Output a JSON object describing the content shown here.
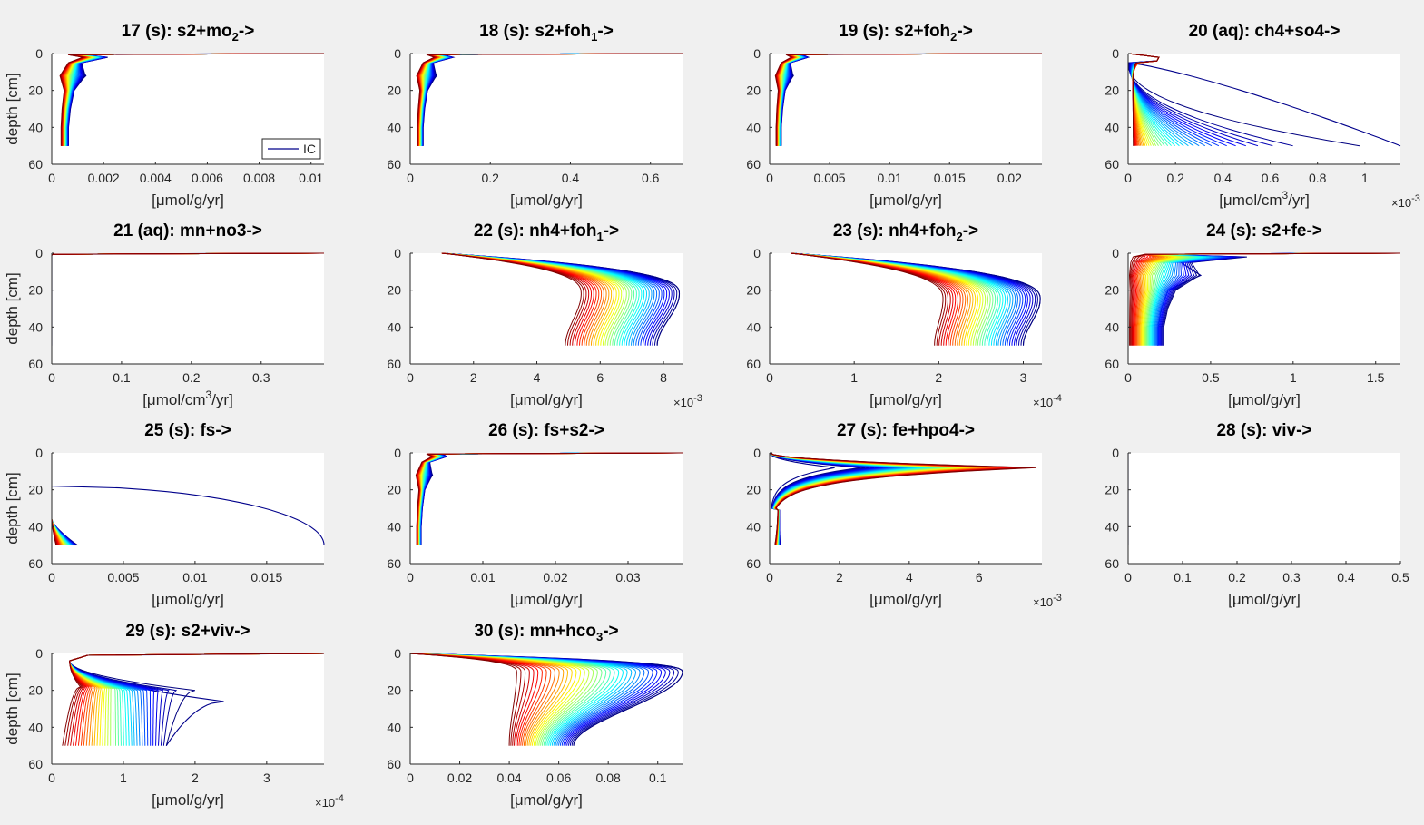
{
  "figure": {
    "background": "#f0f0f0",
    "colormap": "jet (blue = early time steps, red = late time steps)",
    "ic_color": "#00008b"
  },
  "chart_data": [
    {
      "type": "line",
      "id": 17,
      "title_pre": "17 (s): s2+mo",
      "title_sub": "2",
      "title_post": "->",
      "xlabel": "[μmol/g/yr]",
      "ylabel": "depth [cm]",
      "xlim": [
        0,
        0.0105
      ],
      "xticks": [
        "0",
        "0.002",
        "0.004",
        "0.006",
        "0.008",
        "0.01"
      ],
      "xtick_values": [
        0,
        0.002,
        0.004,
        0.006,
        0.008,
        0.01
      ],
      "ylim": [
        0,
        60
      ],
      "yticks": [
        "0",
        "20",
        "40",
        "60"
      ],
      "y_reversed": true,
      "multiplier": "",
      "legend": {
        "entries": [
          "IC"
        ],
        "placement": "bottom-right"
      },
      "profile": "surface_spike",
      "peak_depth": 1,
      "final_value": 0.0004,
      "ic_value": 0.0006,
      "peak_value": 0.0105
    },
    {
      "type": "line",
      "id": 18,
      "title_pre": "18 (s): s2+foh",
      "title_sub": "1",
      "title_post": "->",
      "xlabel": "[μmol/g/yr]",
      "ylabel": "",
      "xlim": [
        0,
        0.68
      ],
      "xticks": [
        "0",
        "0.2",
        "0.4",
        "0.6"
      ],
      "xtick_values": [
        0,
        0.2,
        0.4,
        0.6
      ],
      "ylim": [
        0,
        60
      ],
      "yticks": [
        "0",
        "20",
        "40",
        "60"
      ],
      "y_reversed": true,
      "multiplier": "",
      "profile": "surface_spike",
      "peak_depth": 1,
      "final_value": 0.02,
      "ic_value": 0.03,
      "peak_value": 0.68
    },
    {
      "type": "line",
      "id": 19,
      "title_pre": "19 (s): s2+foh",
      "title_sub": "2",
      "title_post": "->",
      "xlabel": "[μmol/g/yr]",
      "ylabel": "",
      "xlim": [
        0,
        0.0227
      ],
      "xticks": [
        "0",
        "0.005",
        "0.01",
        "0.015",
        "0.02"
      ],
      "xtick_values": [
        0,
        0.005,
        0.01,
        0.015,
        0.02
      ],
      "ylim": [
        0,
        60
      ],
      "yticks": [
        "0",
        "20",
        "40",
        "60"
      ],
      "y_reversed": true,
      "multiplier": "",
      "profile": "surface_spike",
      "peak_depth": 1,
      "final_value": 0.0006,
      "ic_value": 0.0009,
      "peak_value": 0.0227
    },
    {
      "type": "line",
      "id": 20,
      "title_pre": "20 (aq): ch4+so4->",
      "title_sub": "",
      "title_post": "",
      "xlabel": "[μmol/cm³/yr]",
      "xlabel_pre": "[μmol/cm",
      "xlabel_sup": "3",
      "xlabel_post": "/yr]",
      "ylabel": "",
      "xlim": [
        0,
        1.15
      ],
      "xticks": [
        "0",
        "0.2",
        "0.4",
        "0.6",
        "0.8",
        "1"
      ],
      "xtick_values": [
        0,
        0.2,
        0.4,
        0.6,
        0.8,
        1
      ],
      "ylim": [
        0,
        60
      ],
      "yticks": [
        "0",
        "20",
        "40",
        "60"
      ],
      "y_reversed": true,
      "multiplier": "×10",
      "multiplier_exp": "-3",
      "profile": "deep_fan",
      "surface_value": 0.13,
      "surface_depth": 5,
      "final_value": 0.02,
      "max_bottom_value": 1.15
    },
    {
      "type": "line",
      "id": 21,
      "title_pre": "21 (aq): mn+no3->",
      "title_sub": "",
      "title_post": "",
      "xlabel": "[μmol/cm³/yr]",
      "xlabel_pre": "[μmol/cm",
      "xlabel_sup": "3",
      "xlabel_post": "/yr]",
      "ylabel": "depth [cm]",
      "xlim": [
        0,
        0.39
      ],
      "xticks": [
        "0",
        "0.1",
        "0.2",
        "0.3"
      ],
      "xtick_values": [
        0,
        0.1,
        0.2,
        0.3
      ],
      "ylim": [
        0,
        60
      ],
      "yticks": [
        "0",
        "20",
        "40",
        "60"
      ],
      "y_reversed": true,
      "multiplier": "",
      "profile": "flat_surface",
      "peak_value": 0.39
    },
    {
      "type": "line",
      "id": 22,
      "title_pre": "22 (s): nh4+foh",
      "title_sub": "1",
      "title_post": "->",
      "xlabel": "[μmol/g/yr]",
      "ylabel": "",
      "xlim": [
        0,
        8.6
      ],
      "xticks": [
        "0",
        "2",
        "4",
        "6",
        "8"
      ],
      "xtick_values": [
        0,
        2,
        4,
        6,
        8
      ],
      "ylim": [
        0,
        60
      ],
      "yticks": [
        "0",
        "20",
        "40",
        "60"
      ],
      "y_reversed": true,
      "multiplier": "×10",
      "multiplier_exp": "-3",
      "profile": "bulge",
      "surface_value": 1.0,
      "bottom_late": 4.9,
      "bottom_early": 7.8,
      "bulge_late": 5.4,
      "bulge_early": 8.5,
      "bulge_depth": 22
    },
    {
      "type": "line",
      "id": 23,
      "title_pre": "23 (s): nh4+foh",
      "title_sub": "2",
      "title_post": "->",
      "xlabel": "[μmol/g/yr]",
      "ylabel": "",
      "xlim": [
        0,
        3.22
      ],
      "xticks": [
        "0",
        "1",
        "2",
        "3"
      ],
      "xtick_values": [
        0,
        1,
        2,
        3
      ],
      "ylim": [
        0,
        60
      ],
      "yticks": [
        "0",
        "20",
        "40",
        "60"
      ],
      "y_reversed": true,
      "multiplier": "×10",
      "multiplier_exp": "-4",
      "profile": "bulge",
      "surface_value": 0.25,
      "bottom_late": 1.95,
      "bottom_early": 3.0,
      "bulge_late": 2.05,
      "bulge_early": 3.2,
      "bulge_depth": 25
    },
    {
      "type": "line",
      "id": 24,
      "title_pre": "24 (s): s2+fe->",
      "title_sub": "",
      "title_post": "",
      "xlabel": "[μmol/g/yr]",
      "ylabel": "",
      "xlim": [
        0,
        1.65
      ],
      "xticks": [
        "0",
        "0.5",
        "1",
        "1.5"
      ],
      "xtick_values": [
        0,
        0.5,
        1,
        1.5
      ],
      "ylim": [
        0,
        60
      ],
      "yticks": [
        "0",
        "20",
        "40",
        "60"
      ],
      "y_reversed": true,
      "multiplier": "",
      "profile": "surface_spike",
      "peak_depth": 0.5,
      "final_value": 0.01,
      "ic_value": 0.2,
      "peak_value": 1.65
    },
    {
      "type": "line",
      "id": 25,
      "title_pre": "25 (s): fs->",
      "title_sub": "",
      "title_post": "",
      "xlabel": "[μmol/g/yr]",
      "ylabel": "depth [cm]",
      "xlim": [
        0,
        0.019
      ],
      "xticks": [
        "0",
        "0.005",
        "0.01",
        "0.015"
      ],
      "xtick_values": [
        0,
        0.005,
        0.01,
        0.015
      ],
      "ylim": [
        0,
        60
      ],
      "yticks": [
        "0",
        "20",
        "40",
        "60"
      ],
      "y_reversed": true,
      "multiplier": "",
      "profile": "fs",
      "ic_start_depth": 18,
      "ic_max": 0.019
    },
    {
      "type": "line",
      "id": 26,
      "title_pre": "26 (s): fs+s2->",
      "title_sub": "",
      "title_post": "",
      "xlabel": "[μmol/g/yr]",
      "ylabel": "",
      "xlim": [
        0,
        0.0375
      ],
      "xticks": [
        "0",
        "0.01",
        "0.02",
        "0.03"
      ],
      "xtick_values": [
        0,
        0.01,
        0.02,
        0.03
      ],
      "ylim": [
        0,
        60
      ],
      "yticks": [
        "0",
        "20",
        "40",
        "60"
      ],
      "y_reversed": true,
      "multiplier": "",
      "profile": "surface_spike",
      "peak_depth": 1,
      "final_value": 0.001,
      "ic_value": 0.0014,
      "peak_value": 0.0375
    },
    {
      "type": "line",
      "id": 27,
      "title_pre": "27 (s): fe+hpo4->",
      "title_sub": "",
      "title_post": "",
      "xlabel": "[μmol/g/yr]",
      "ylabel": "",
      "xlim": [
        0,
        7.8
      ],
      "xticks": [
        "0",
        "2",
        "4",
        "6"
      ],
      "xtick_values": [
        0,
        2,
        4,
        6
      ],
      "ylim": [
        0,
        60
      ],
      "yticks": [
        "0",
        "20",
        "40",
        "60"
      ],
      "y_reversed": true,
      "multiplier": "×10",
      "multiplier_exp": "-3",
      "profile": "subsurface_peak",
      "peak_depth": 8,
      "peak_early": 1.9,
      "peak_late": 7.8,
      "bottom_value": 0.3
    },
    {
      "type": "line",
      "id": 28,
      "title_pre": "28 (s): viv->",
      "title_sub": "",
      "title_post": "",
      "xlabel": "[μmol/g/yr]",
      "ylabel": "",
      "xlim": [
        0,
        0.5
      ],
      "xticks": [
        "0",
        "0.1",
        "0.2",
        "0.3",
        "0.4",
        "0.5"
      ],
      "xtick_values": [
        0,
        0.1,
        0.2,
        0.3,
        0.4,
        0.5
      ],
      "ylim": [
        0,
        60
      ],
      "yticks": [
        "0",
        "20",
        "40",
        "60"
      ],
      "y_reversed": true,
      "multiplier": "",
      "profile": "zero"
    },
    {
      "type": "line",
      "id": 29,
      "title_pre": "29 (s): s2+viv->",
      "title_sub": "",
      "title_post": "",
      "xlabel": "[μmol/g/yr]",
      "ylabel": "depth [cm]",
      "xlim": [
        0,
        3.8
      ],
      "xticks": [
        "0",
        "1",
        "2",
        "3"
      ],
      "xtick_values": [
        0,
        1,
        2,
        3
      ],
      "ylim": [
        0,
        60
      ],
      "yticks": [
        "0",
        "20",
        "40",
        "60"
      ],
      "y_reversed": true,
      "multiplier": "×10",
      "multiplier_exp": "-4",
      "profile": "viv",
      "final_value": 0.15,
      "peak_value": 3.8
    },
    {
      "type": "line",
      "id": 30,
      "title_pre": "30 (s): mn+hco",
      "title_sub": "3",
      "title_post": "->",
      "xlabel": "[μmol/g/yr]",
      "ylabel": "",
      "xlim": [
        0,
        0.11
      ],
      "xticks": [
        "0",
        "0.02",
        "0.04",
        "0.06",
        "0.08",
        "0.1"
      ],
      "xtick_values": [
        0,
        0.02,
        0.04,
        0.06,
        0.08,
        0.1
      ],
      "ylim": [
        0,
        60
      ],
      "yticks": [
        "0",
        "20",
        "40",
        "60"
      ],
      "y_reversed": true,
      "multiplier": "",
      "profile": "bulge",
      "surface_value": 0.0,
      "bottom_late": 0.04,
      "bottom_early": 0.066,
      "bulge_late": 0.043,
      "bulge_early": 0.11,
      "bulge_depth": 10
    }
  ]
}
